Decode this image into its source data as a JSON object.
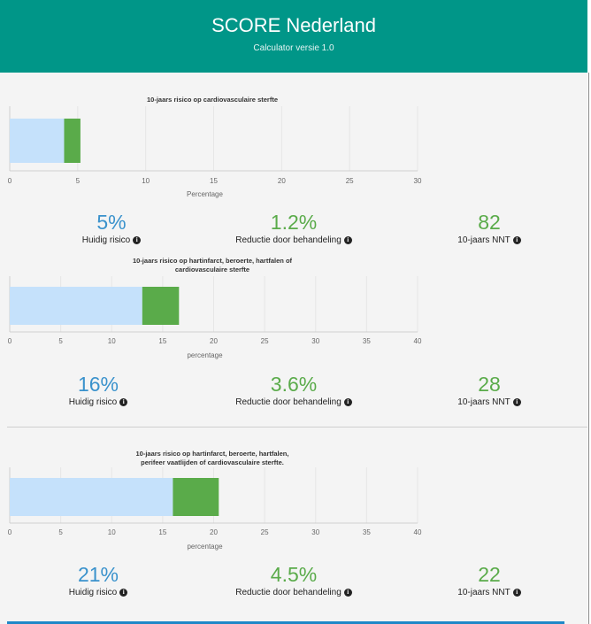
{
  "header": {
    "title": "SCORE Nederland",
    "subtitle": "Calculator versie 1.0"
  },
  "colors": {
    "header": "#009688",
    "current": "#c5e1fb",
    "reduction": "#5aab4a",
    "blue_text": "#3a92cc",
    "green_text": "#5aab4a"
  },
  "sections": [
    {
      "title": "10-jaars risico op cardiovasculaire sterfte",
      "stats": [
        {
          "value": "5%",
          "label": "Huidig risico"
        },
        {
          "value": "1.2%",
          "label": "Reductie door behandeling"
        },
        {
          "value": "82",
          "label": "10-jaars NNT"
        }
      ]
    },
    {
      "title": "10-jaars risico op hartinfarct, beroerte, hartfalen of cardiovasculaire sterfte",
      "stats": [
        {
          "value": "16%",
          "label": "Huidig risico"
        },
        {
          "value": "3.6%",
          "label": "Reductie door behandeling"
        },
        {
          "value": "28",
          "label": "10-jaars NNT"
        }
      ]
    },
    {
      "title": "10-jaars risico op hartinfarct, beroerte, hartfalen, perifeer vaatlijden of cardiovasculaire sterfte.",
      "stats": [
        {
          "value": "21%",
          "label": "Huidig risico"
        },
        {
          "value": "4.5%",
          "label": "Reductie door behandeling"
        },
        {
          "value": "22",
          "label": "10-jaars NNT"
        }
      ]
    }
  ],
  "chart_data": [
    {
      "type": "bar",
      "orientation": "horizontal",
      "stacked": true,
      "title": "10-jaars risico op cardiovasculaire sterfte",
      "xlabel": "Percentage",
      "xlim": [
        0,
        30
      ],
      "ticks": [
        0,
        5,
        10,
        15,
        20,
        25,
        30
      ],
      "grid": true,
      "series": [
        {
          "values": [
            4
          ]
        },
        {
          "values": [
            1.2
          ]
        }
      ]
    },
    {
      "type": "bar",
      "orientation": "horizontal",
      "stacked": true,
      "title": "10-jaars risico op hartinfarct, beroerte, hartfalen of cardiovasculaire sterfte",
      "xlabel": "percentage",
      "xlim": [
        0,
        40
      ],
      "ticks": [
        0,
        5,
        10,
        15,
        20,
        25,
        30,
        35,
        40
      ],
      "grid": true,
      "series": [
        {
          "values": [
            13
          ]
        },
        {
          "values": [
            3.6
          ]
        }
      ]
    },
    {
      "type": "bar",
      "orientation": "horizontal",
      "stacked": true,
      "title": "10-jaars risico op hartinfarct, beroerte, hartfalen, perifeer vaatlijden of cardiovasculaire sterfte.",
      "xlabel": "percentage",
      "xlim": [
        0,
        40
      ],
      "ticks": [
        0,
        5,
        10,
        15,
        20,
        25,
        30,
        35,
        40
      ],
      "grid": true,
      "series": [
        {
          "values": [
            16
          ]
        },
        {
          "values": [
            4.5
          ]
        }
      ]
    }
  ]
}
